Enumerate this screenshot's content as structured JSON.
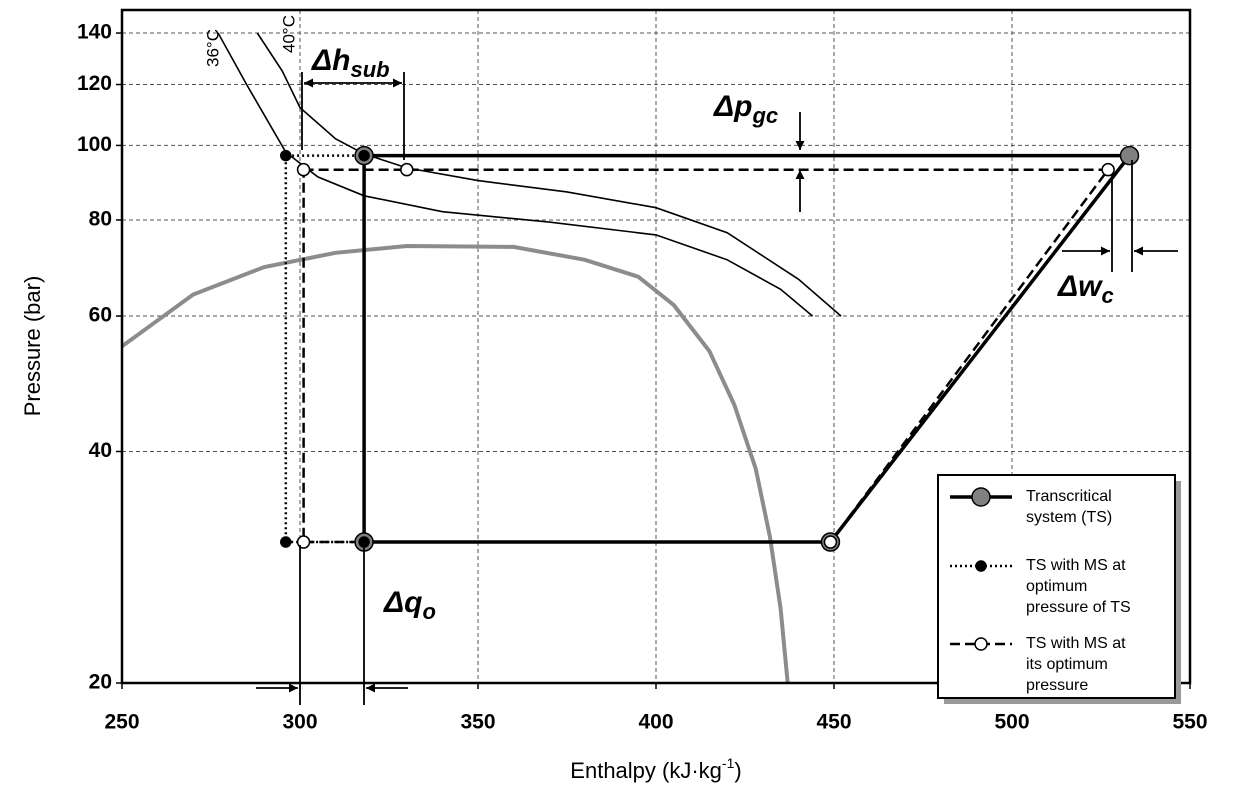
{
  "chart_data": {
    "type": "line",
    "x_label": {
      "text": "Enthalpy (kJ·kg",
      "sup": "-1",
      "end": ")"
    },
    "y_label": "Pressure (bar)",
    "xlim": [
      250,
      550
    ],
    "xticks": [
      250,
      300,
      350,
      400,
      450,
      500,
      550
    ],
    "ylim": [
      20,
      150
    ],
    "yticks": [
      20,
      40,
      60,
      80,
      100,
      120,
      140
    ],
    "log_y": true,
    "grid": true,
    "legend": "lower right",
    "series": [
      {
        "name": "Transcritical system (TS)",
        "color": "#000000",
        "marker_color": "#808080",
        "style": "solid",
        "x": [
          318,
          533,
          449,
          318
        ],
        "values": [
          97,
          97,
          30.5,
          30.5
        ]
      },
      {
        "name": "TS with MS at optimum pressure of TS",
        "color": "#000000",
        "marker_color": "#000000",
        "style": "dotted",
        "x": [
          318,
          296,
          296,
          318
        ],
        "values": [
          97,
          97,
          30.5,
          30.5
        ]
      },
      {
        "name": "TS with MS at its optimum pressure",
        "color": "#000000",
        "marker_color": "#ffffff",
        "style": "dashed",
        "x": [
          301,
          330,
          527,
          449,
          301
        ],
        "values": [
          93,
          93,
          93,
          30.5,
          30.5
        ]
      }
    ],
    "isotherms": [
      {
        "label": "36°C",
        "x": [
          277,
          285,
          296,
          305,
          318,
          340,
          370,
          400,
          420,
          435,
          444
        ],
        "values": [
          140,
          120,
          98,
          91,
          86,
          82,
          79.5,
          76.5,
          71,
          65,
          60
        ]
      },
      {
        "label": "40°C",
        "x": [
          288,
          295,
          300,
          310,
          318,
          330,
          350,
          375,
          400,
          420,
          440,
          452
        ],
        "values": [
          140,
          125,
          112,
          102,
          97.5,
          93.5,
          90,
          87,
          83,
          77,
          67,
          60
        ]
      }
    ],
    "dome": {
      "color": "#8c8c8c",
      "x": [
        250,
        270,
        290,
        310,
        330,
        360,
        380,
        395,
        405,
        415,
        422,
        428,
        432,
        435,
        437
      ],
      "values": [
        54.8,
        64,
        69.5,
        72.5,
        74,
        73.8,
        71,
        67.5,
        62,
        54,
        46,
        38,
        31,
        25,
        20
      ]
    },
    "annotations": [
      {
        "main": "Δh",
        "sub": "sub"
      },
      {
        "main": "Δp",
        "sub": "gc"
      },
      {
        "main": "Δw",
        "sub": "c"
      },
      {
        "main": "Δq",
        "sub": "o"
      }
    ]
  }
}
